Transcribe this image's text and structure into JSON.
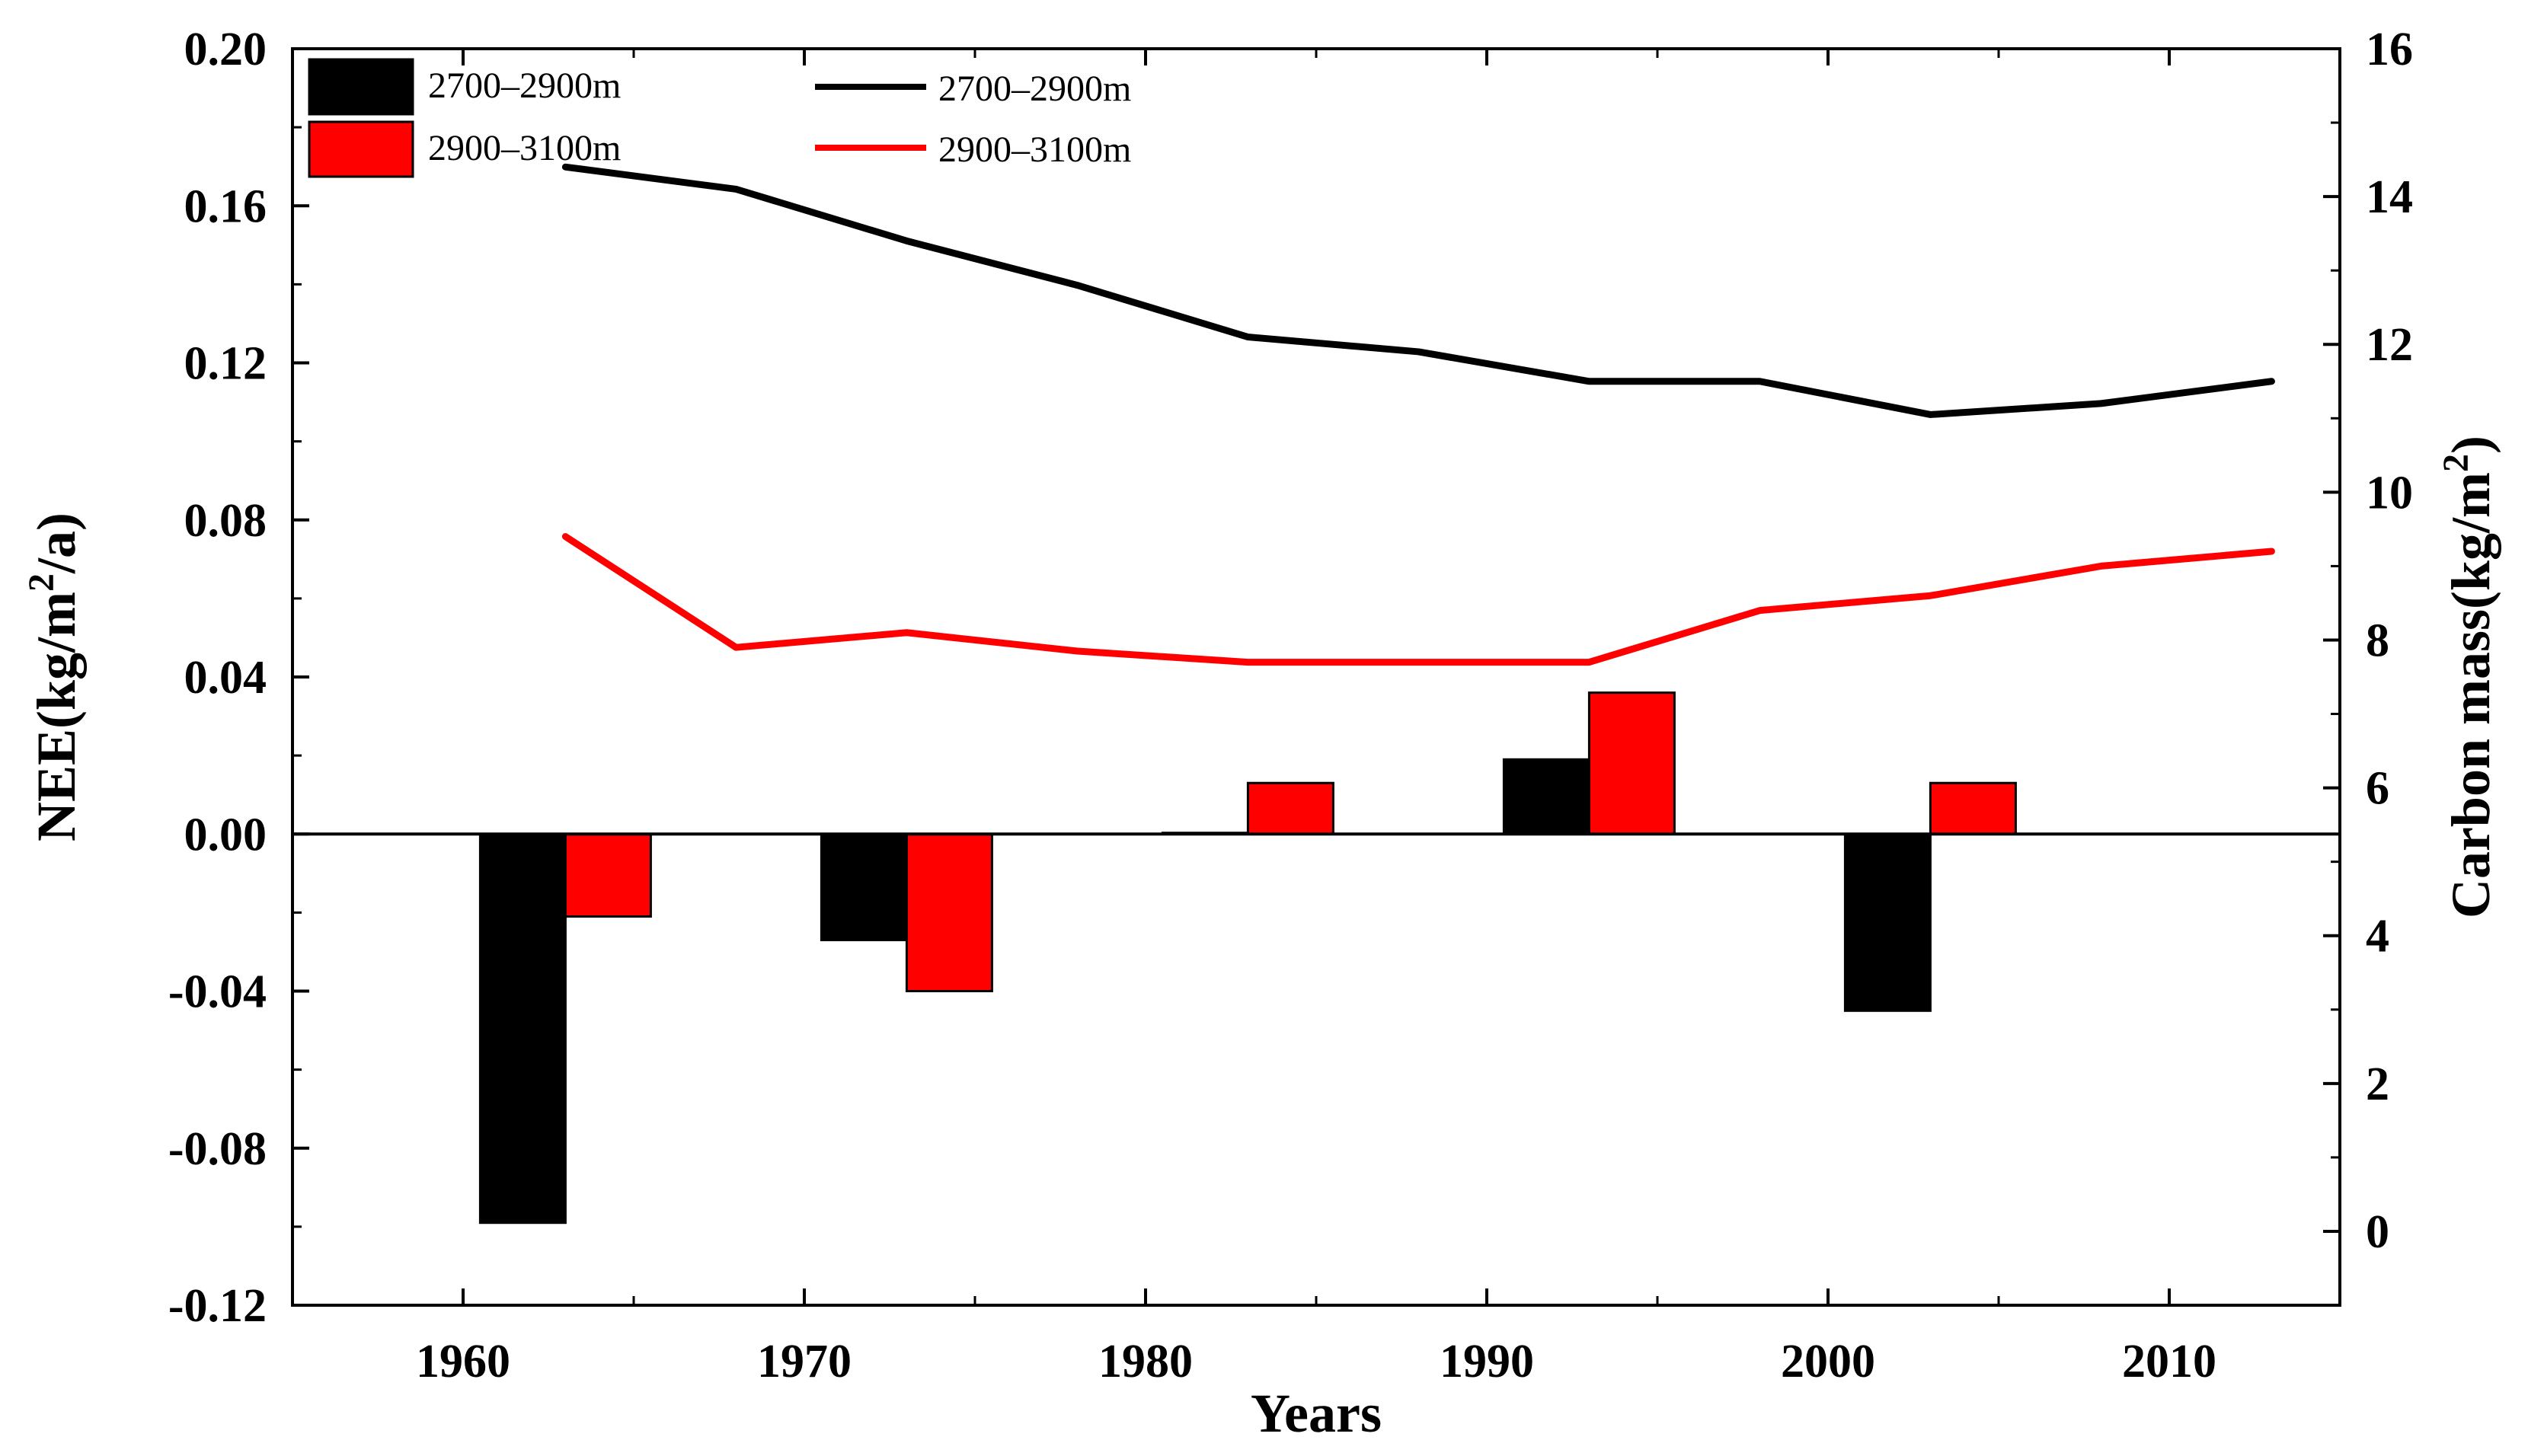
{
  "chart_data": {
    "type": "bar+line",
    "title": "",
    "xlabel": "Years",
    "ylabel_left": "NEE(kg/m2/a)",
    "ylabel_right": "Carbon mass(kg/m2)",
    "xlim": [
      1955,
      2015
    ],
    "ylim_left": [
      -0.12,
      0.2
    ],
    "ylim_right": [
      -1.0,
      16
    ],
    "x_ticks": [
      1960,
      1970,
      1980,
      1990,
      2000,
      2010
    ],
    "x_tick_labels": [
      "1960",
      "1970",
      "1980",
      "1990",
      "2000",
      "2010"
    ],
    "y_left_ticks": [
      0.2,
      0.16,
      0.12,
      0.08,
      0.04,
      0.0,
      -0.04,
      -0.08,
      -0.12
    ],
    "y_left_tick_labels": [
      "0.20",
      "0.16",
      "0.12",
      "0.08",
      "0.04",
      "0.00",
      "-0.04",
      "-0.08",
      "-0.12"
    ],
    "y_right_ticks": [
      16,
      14,
      12,
      10,
      8,
      6,
      4,
      2,
      0
    ],
    "y_right_tick_labels": [
      "16",
      "14",
      "12",
      "10",
      "8",
      "6",
      "4",
      "2",
      "0"
    ],
    "bar_categories": [
      1963,
      1973,
      1983,
      1993,
      2003
    ],
    "bar_series": [
      {
        "name": "2700–2900m",
        "color": "#000000",
        "values": [
          -0.099,
          -0.027,
          0.0003,
          0.019,
          -0.045
        ]
      },
      {
        "name": "2900–3100m",
        "color": "#ff0000",
        "values": [
          -0.021,
          -0.04,
          0.013,
          0.036,
          0.013
        ]
      }
    ],
    "line_series": [
      {
        "name": "2700–2900m",
        "color": "#000000",
        "x": [
          1963,
          1968,
          1973,
          1978,
          1983,
          1988,
          1993,
          1998,
          2003,
          2008,
          2013
        ],
        "values": [
          14.4,
          14.1,
          13.4,
          12.8,
          12.1,
          11.9,
          11.5,
          11.5,
          11.05,
          11.2,
          11.5
        ]
      },
      {
        "name": "2900–3100m",
        "color": "#ff0000",
        "x": [
          1963,
          1968,
          1973,
          1978,
          1983,
          1988,
          1993,
          1998,
          2003,
          2008,
          2013
        ],
        "values": [
          9.4,
          7.9,
          8.1,
          7.85,
          7.7,
          7.7,
          7.7,
          8.4,
          8.6,
          9.0,
          9.2
        ]
      }
    ]
  }
}
